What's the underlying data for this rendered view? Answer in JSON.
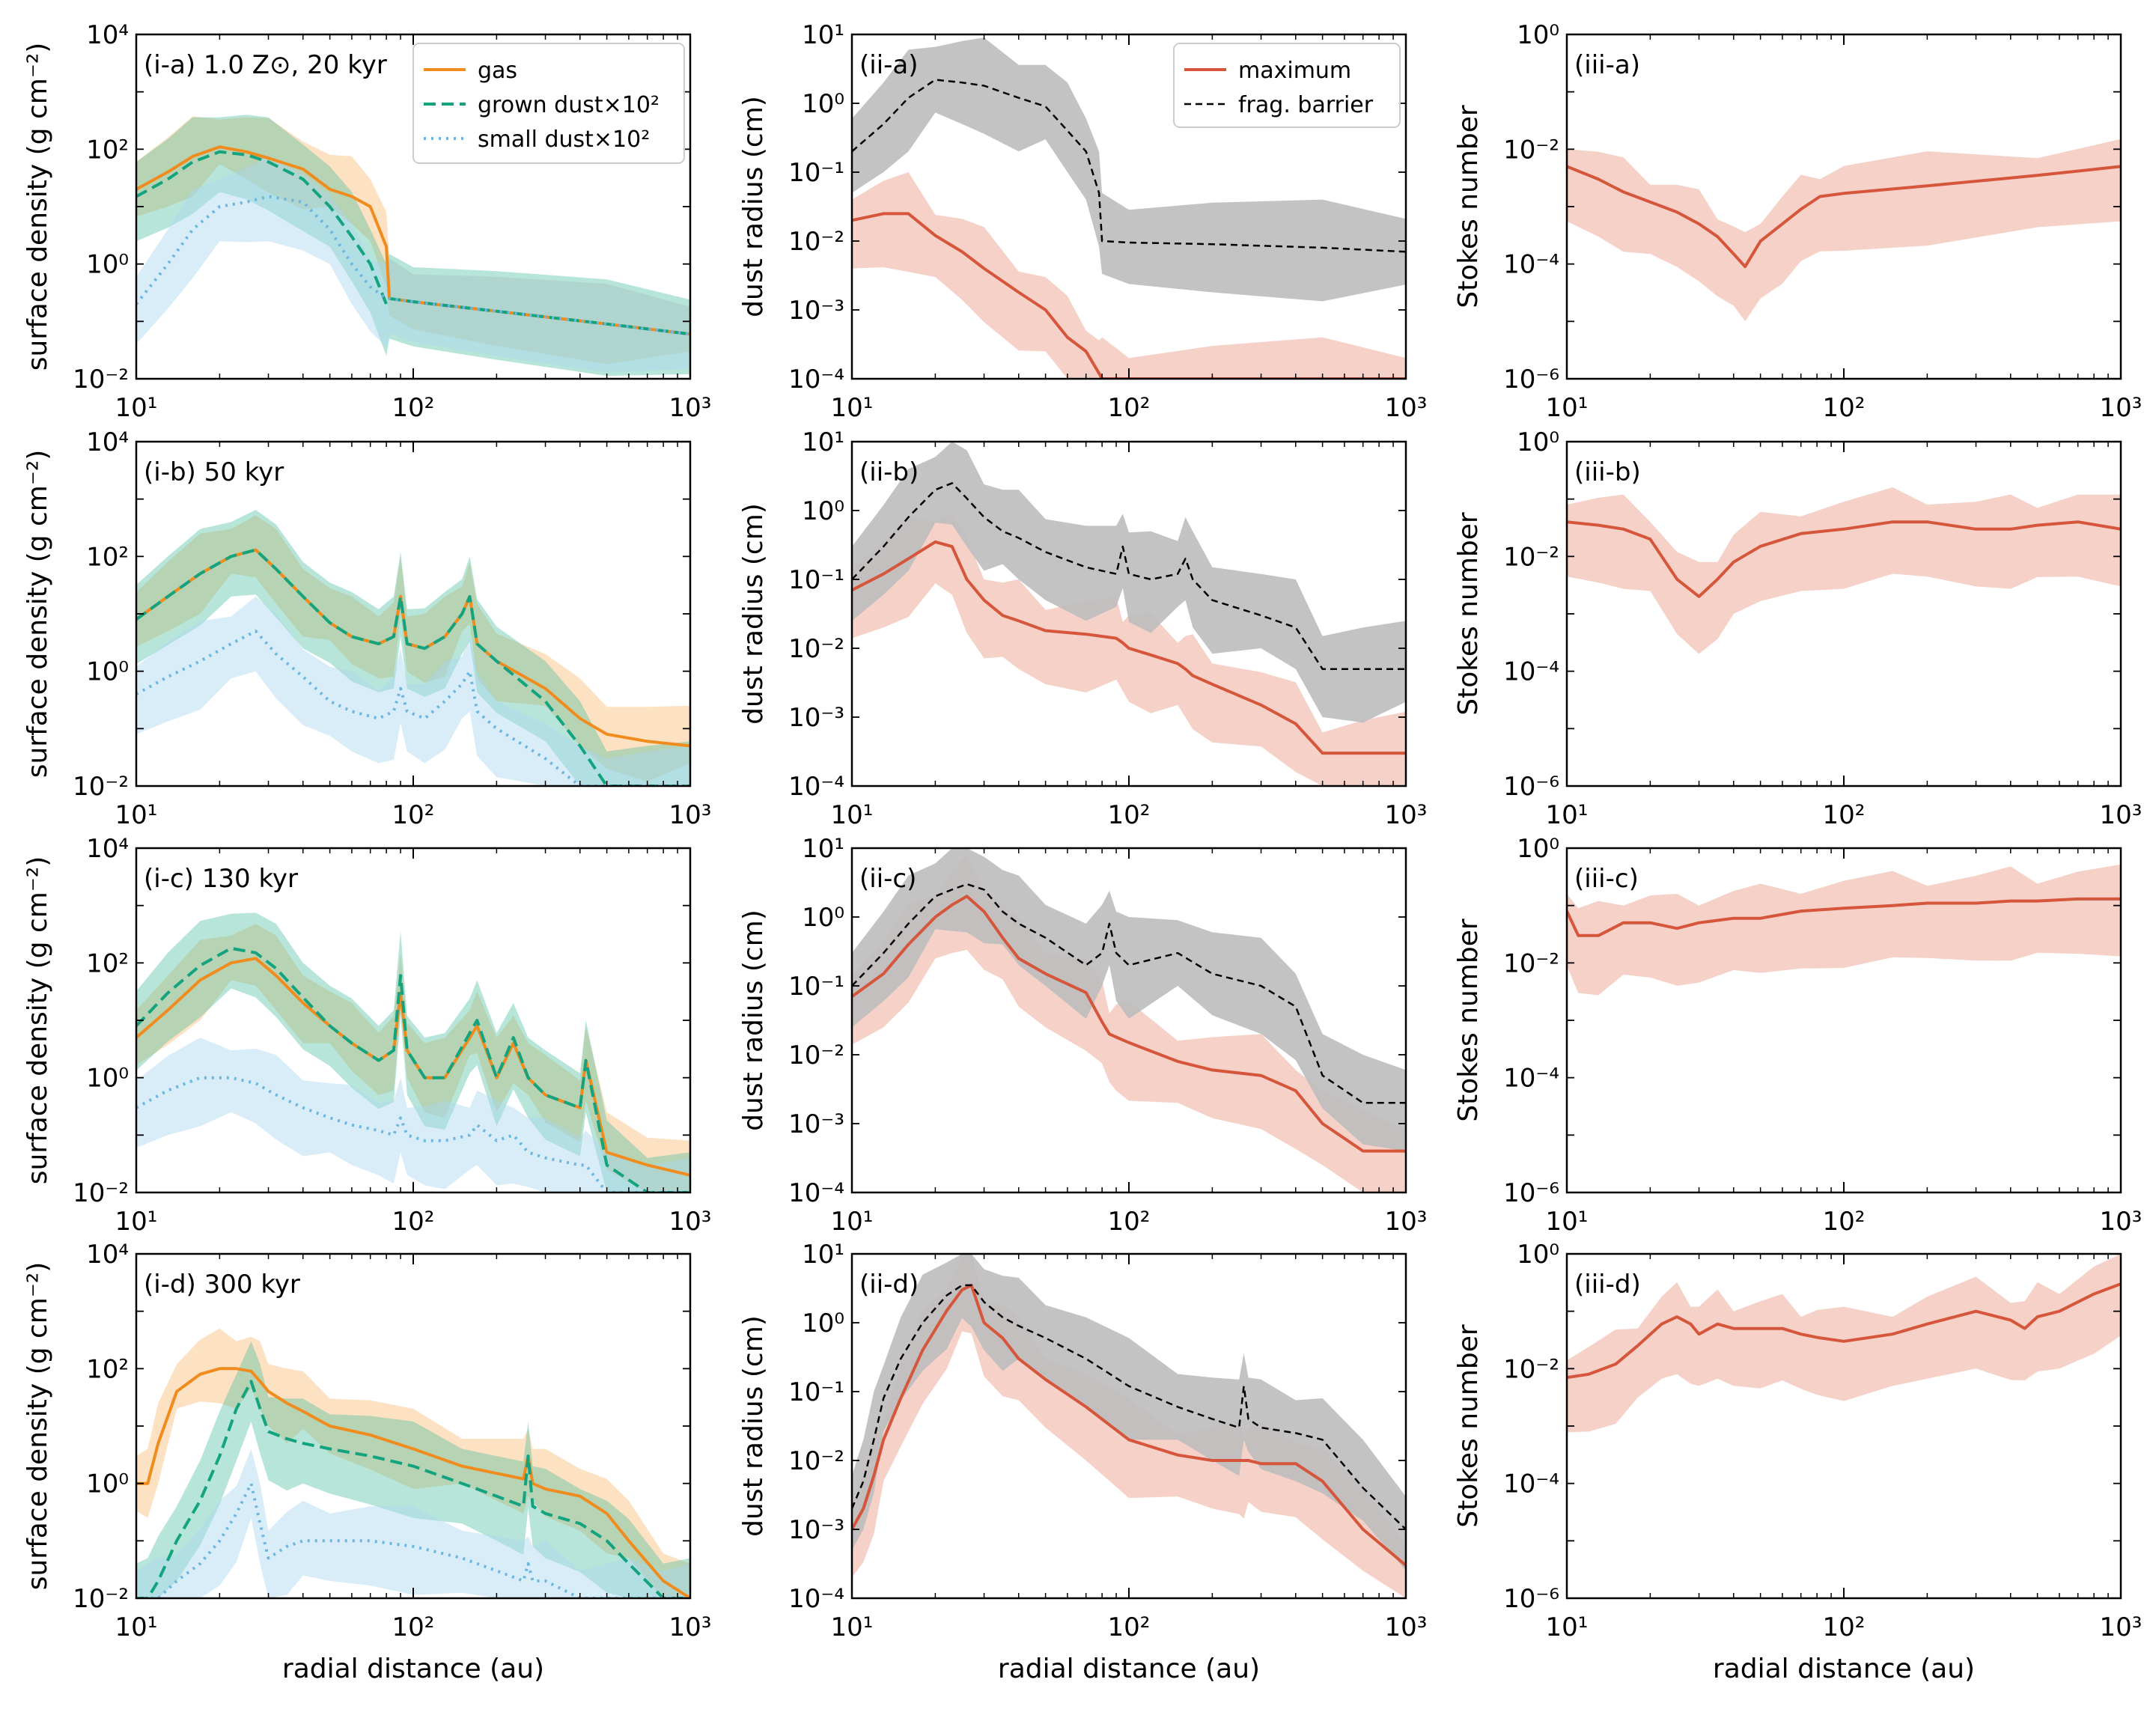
{
  "figure": {
    "xlabel": "radial distance (au)",
    "col_ylabels": [
      "surface density (g cm⁻²)",
      "dust radius (cm)",
      "Stokes number"
    ],
    "colors": {
      "gas": "#f08c1e",
      "grown": "#13a37f",
      "small": "#6bb7df",
      "dustmax": "#d6563c",
      "frag": "#000000",
      "band_gray": "#bdbdbd",
      "band_red": "#f2c2b6"
    }
  },
  "legends": {
    "surface": [
      "gas",
      "grown dust×10²",
      "small dust×10²"
    ],
    "radius": [
      "maximum",
      "frag. barrier"
    ]
  },
  "chart_data": [
    {
      "type": "line",
      "panel": "(i-a) 1.0 Z⊙, 20 kyr",
      "ylabel": "surface density (g cm⁻²)",
      "xlabel": "",
      "xlim": [
        10,
        1000
      ],
      "ylim": [
        0.01,
        10000
      ],
      "xscale": "log",
      "yscale": "log",
      "x": [
        10,
        13,
        16,
        20,
        25,
        30,
        40,
        50,
        60,
        70,
        80,
        82,
        100,
        200,
        500,
        1000
      ],
      "series": [
        {
          "name": "gas",
          "values": [
            20,
            40,
            75,
            110,
            90,
            70,
            45,
            20,
            15,
            10,
            2,
            0.25,
            0.22,
            0.15,
            0.09,
            0.06
          ]
        },
        {
          "name": "grown dust×10²",
          "values": [
            15,
            30,
            60,
            90,
            80,
            60,
            30,
            10,
            3,
            1,
            0.2,
            0.25,
            0.22,
            0.15,
            0.09,
            0.06
          ]
        },
        {
          "name": "small dust×10²",
          "values": [
            0.2,
            1,
            4,
            10,
            12,
            15,
            12,
            4,
            1,
            0.4,
            0.25,
            0.25,
            0.22,
            0.15,
            0.09,
            0.06
          ]
        }
      ]
    },
    {
      "type": "line",
      "panel": "(ii-a)",
      "ylabel": "dust radius (cm)",
      "xlabel": "",
      "xlim": [
        10,
        1000
      ],
      "ylim": [
        0.0001,
        10
      ],
      "xscale": "log",
      "yscale": "log",
      "x": [
        10,
        13,
        16,
        20,
        25,
        30,
        40,
        50,
        60,
        70,
        78,
        80,
        100,
        200,
        500,
        1000
      ],
      "series": [
        {
          "name": "maximum",
          "values": [
            0.02,
            0.025,
            0.025,
            0.012,
            0.007,
            0.004,
            0.0018,
            0.001,
            0.0004,
            0.00025,
            0.00012,
            0.0001,
            0.0001,
            0.0001,
            0.0001,
            0.0001
          ]
        },
        {
          "name": "frag. barrier",
          "values": [
            0.2,
            0.5,
            1.2,
            2.2,
            2,
            1.8,
            1.2,
            0.9,
            0.4,
            0.2,
            0.05,
            0.01,
            0.0095,
            0.009,
            0.008,
            0.007
          ]
        }
      ]
    },
    {
      "type": "line",
      "panel": "(iii-a)",
      "ylabel": "Stokes number",
      "xlabel": "",
      "xlim": [
        10,
        1000
      ],
      "ylim": [
        1e-06,
        1
      ],
      "xscale": "log",
      "yscale": "log",
      "x": [
        10,
        13,
        16,
        20,
        25,
        30,
        35,
        40,
        44,
        50,
        60,
        70,
        82,
        100,
        200,
        500,
        1000
      ],
      "series": [
        {
          "name": "Stokes number",
          "values": [
            0.005,
            0.003,
            0.0018,
            0.0012,
            0.0008,
            0.0005,
            0.0003,
            0.00015,
            9e-05,
            0.00025,
            0.0005,
            0.0009,
            0.0015,
            0.0017,
            0.0023,
            0.0035,
            0.005
          ]
        }
      ]
    },
    {
      "type": "line",
      "panel": "(i-b) 50 kyr",
      "ylabel": "surface density (g cm⁻²)",
      "xlabel": "",
      "xlim": [
        10,
        1000
      ],
      "ylim": [
        0.01,
        10000
      ],
      "xscale": "log",
      "yscale": "log",
      "x": [
        10,
        13,
        17,
        22,
        27,
        32,
        40,
        50,
        60,
        75,
        85,
        90,
        95,
        110,
        130,
        150,
        160,
        170,
        200,
        300,
        400,
        500,
        700,
        1000
      ],
      "series": [
        {
          "name": "gas",
          "values": [
            8,
            20,
            50,
            100,
            130,
            60,
            20,
            7,
            4,
            3,
            4,
            20,
            3,
            2.5,
            4,
            10,
            20,
            3,
            1.5,
            0.5,
            0.15,
            0.08,
            0.06,
            0.05
          ]
        },
        {
          "name": "grown dust×10²",
          "values": [
            8,
            20,
            50,
            100,
            130,
            60,
            20,
            7,
            4,
            3,
            4,
            20,
            3,
            2.5,
            4,
            10,
            20,
            3,
            1.5,
            0.3,
            0.05,
            0.01,
            0.01,
            0.01
          ]
        },
        {
          "name": "small dust×10²",
          "values": [
            0.4,
            0.8,
            1.5,
            3,
            5,
            2,
            0.8,
            0.3,
            0.2,
            0.15,
            0.2,
            0.5,
            0.2,
            0.15,
            0.3,
            0.6,
            1,
            0.2,
            0.1,
            0.03,
            0.01,
            0.01,
            0.01,
            0.01
          ]
        }
      ]
    },
    {
      "type": "line",
      "panel": "(ii-b)",
      "ylabel": "dust radius (cm)",
      "xlabel": "",
      "xlim": [
        10,
        1000
      ],
      "ylim": [
        0.0001,
        10
      ],
      "xscale": "log",
      "yscale": "log",
      "x": [
        10,
        13,
        16,
        20,
        23,
        26,
        30,
        35,
        40,
        50,
        70,
        90,
        95,
        100,
        120,
        150,
        160,
        170,
        200,
        300,
        400,
        500,
        700,
        1000
      ],
      "series": [
        {
          "name": "maximum",
          "values": [
            0.07,
            0.12,
            0.2,
            0.35,
            0.3,
            0.1,
            0.05,
            0.03,
            0.025,
            0.018,
            0.016,
            0.014,
            0.012,
            0.01,
            0.008,
            0.006,
            0.005,
            0.004,
            0.003,
            0.0015,
            0.0008,
            0.0003,
            0.0003,
            0.0003
          ]
        },
        {
          "name": "frag. barrier",
          "values": [
            0.1,
            0.3,
            0.8,
            2,
            2.5,
            1.5,
            0.8,
            0.5,
            0.4,
            0.25,
            0.15,
            0.12,
            0.3,
            0.12,
            0.1,
            0.12,
            0.2,
            0.1,
            0.05,
            0.03,
            0.02,
            0.005,
            0.005,
            0.005
          ]
        }
      ]
    },
    {
      "type": "line",
      "panel": "(iii-b)",
      "ylabel": "Stokes number",
      "xlabel": "",
      "xlim": [
        10,
        1000
      ],
      "ylim": [
        1e-06,
        1
      ],
      "xscale": "log",
      "yscale": "log",
      "x": [
        10,
        13,
        16,
        20,
        25,
        30,
        35,
        40,
        50,
        70,
        100,
        150,
        200,
        300,
        400,
        500,
        700,
        1000
      ],
      "series": [
        {
          "name": "Stokes number",
          "values": [
            0.04,
            0.035,
            0.03,
            0.02,
            0.004,
            0.002,
            0.004,
            0.008,
            0.015,
            0.025,
            0.03,
            0.04,
            0.04,
            0.03,
            0.03,
            0.035,
            0.04,
            0.03
          ]
        }
      ]
    },
    {
      "type": "line",
      "panel": "(i-c) 130 kyr",
      "ylabel": "surface density (g cm⁻²)",
      "xlabel": "",
      "xlim": [
        10,
        1000
      ],
      "ylim": [
        0.01,
        10000
      ],
      "xscale": "log",
      "yscale": "log",
      "x": [
        10,
        13,
        17,
        22,
        27,
        32,
        40,
        50,
        60,
        75,
        85,
        90,
        95,
        110,
        130,
        160,
        170,
        200,
        230,
        260,
        300,
        400,
        420,
        500,
        700,
        1000
      ],
      "series": [
        {
          "name": "gas",
          "values": [
            5,
            15,
            50,
            100,
            120,
            60,
            20,
            8,
            4,
            2,
            3,
            30,
            3,
            1,
            1,
            5,
            8,
            1,
            4,
            1,
            0.5,
            0.3,
            2,
            0.05,
            0.03,
            0.02
          ]
        },
        {
          "name": "grown dust×10²",
          "values": [
            8,
            30,
            90,
            180,
            150,
            80,
            25,
            8,
            4,
            2,
            3,
            60,
            3,
            1,
            1,
            6,
            10,
            1,
            5,
            1,
            0.5,
            0.3,
            2,
            0.03,
            0.01,
            0.01
          ]
        },
        {
          "name": "small dust×10²",
          "values": [
            0.3,
            0.6,
            1,
            1,
            0.8,
            0.5,
            0.3,
            0.2,
            0.15,
            0.12,
            0.1,
            0.2,
            0.1,
            0.08,
            0.08,
            0.1,
            0.15,
            0.08,
            0.1,
            0.05,
            0.04,
            0.03,
            0.03,
            0.01,
            0.01,
            0.01
          ]
        }
      ]
    },
    {
      "type": "line",
      "panel": "(ii-c)",
      "ylabel": "dust radius (cm)",
      "xlabel": "",
      "xlim": [
        10,
        1000
      ],
      "ylim": [
        0.0001,
        10
      ],
      "xscale": "log",
      "yscale": "log",
      "x": [
        10,
        13,
        16,
        20,
        23,
        26,
        30,
        35,
        40,
        50,
        70,
        80,
        85,
        90,
        100,
        150,
        200,
        300,
        400,
        500,
        700,
        1000
      ],
      "series": [
        {
          "name": "maximum",
          "values": [
            0.07,
            0.15,
            0.4,
            1,
            1.5,
            2,
            1.2,
            0.5,
            0.25,
            0.15,
            0.08,
            0.03,
            0.02,
            0.018,
            0.015,
            0.008,
            0.006,
            0.005,
            0.003,
            0.001,
            0.0004,
            0.0004
          ]
        },
        {
          "name": "frag. barrier",
          "values": [
            0.1,
            0.3,
            0.8,
            2,
            2.5,
            3,
            2.5,
            1.2,
            0.8,
            0.5,
            0.2,
            0.3,
            0.8,
            0.3,
            0.2,
            0.3,
            0.15,
            0.1,
            0.05,
            0.005,
            0.002,
            0.002
          ]
        }
      ]
    },
    {
      "type": "line",
      "panel": "(iii-c)",
      "ylabel": "Stokes number",
      "xlabel": "",
      "xlim": [
        10,
        1000
      ],
      "ylim": [
        1e-06,
        1
      ],
      "xscale": "log",
      "yscale": "log",
      "x": [
        10,
        11,
        13,
        16,
        20,
        25,
        30,
        40,
        50,
        70,
        100,
        150,
        200,
        300,
        400,
        500,
        700,
        1000
      ],
      "series": [
        {
          "name": "Stokes number",
          "values": [
            0.08,
            0.03,
            0.03,
            0.05,
            0.05,
            0.04,
            0.05,
            0.06,
            0.06,
            0.08,
            0.09,
            0.1,
            0.11,
            0.11,
            0.12,
            0.12,
            0.13,
            0.13
          ]
        }
      ]
    },
    {
      "type": "line",
      "panel": "(i-d) 300 kyr",
      "ylabel": "surface density (g cm⁻²)",
      "xlabel": "radial distance (au)",
      "xlim": [
        10,
        1000
      ],
      "ylim": [
        0.01,
        10000
      ],
      "xscale": "log",
      "yscale": "log",
      "x": [
        10,
        11,
        12,
        14,
        17,
        20,
        23,
        26,
        28,
        30,
        35,
        40,
        50,
        70,
        100,
        150,
        200,
        250,
        260,
        270,
        300,
        400,
        500,
        600,
        800,
        1000
      ],
      "series": [
        {
          "name": "gas",
          "values": [
            1,
            1,
            5,
            40,
            80,
            100,
            100,
            90,
            60,
            40,
            25,
            18,
            10,
            7,
            4,
            2,
            1.5,
            1.2,
            3,
            1,
            0.8,
            0.6,
            0.3,
            0.1,
            0.02,
            0.01
          ]
        },
        {
          "name": "grown dust×10²",
          "values": [
            0.01,
            0.01,
            0.02,
            0.1,
            0.5,
            3,
            20,
            60,
            20,
            8,
            6,
            5,
            4,
            3,
            2,
            1,
            0.6,
            0.4,
            3,
            0.4,
            0.3,
            0.2,
            0.1,
            0.04,
            0.01,
            0.01
          ]
        },
        {
          "name": "small dust×10²",
          "values": [
            0.01,
            0.01,
            0.01,
            0.02,
            0.04,
            0.1,
            0.3,
            1,
            0.2,
            0.05,
            0.08,
            0.1,
            0.1,
            0.1,
            0.08,
            0.05,
            0.03,
            0.02,
            0.04,
            0.02,
            0.02,
            0.01,
            0.01,
            0.01,
            0.01,
            0.01
          ]
        }
      ]
    },
    {
      "type": "line",
      "panel": "(ii-d)",
      "ylabel": "dust radius (cm)",
      "xlabel": "radial distance (au)",
      "xlim": [
        10,
        1000
      ],
      "ylim": [
        0.0001,
        10
      ],
      "xscale": "log",
      "yscale": "log",
      "x": [
        10,
        11,
        12,
        13,
        15,
        18,
        22,
        25,
        27,
        30,
        35,
        40,
        50,
        70,
        100,
        150,
        200,
        250,
        260,
        270,
        300,
        400,
        500,
        700,
        1000
      ],
      "series": [
        {
          "name": "maximum",
          "values": [
            0.001,
            0.002,
            0.006,
            0.02,
            0.08,
            0.4,
            1.5,
            3,
            3.5,
            1,
            0.6,
            0.3,
            0.15,
            0.06,
            0.02,
            0.012,
            0.01,
            0.01,
            0.01,
            0.01,
            0.009,
            0.009,
            0.005,
            0.001,
            0.0003
          ]
        },
        {
          "name": "frag. barrier",
          "values": [
            0.002,
            0.005,
            0.02,
            0.08,
            0.3,
            1,
            2.5,
            3.5,
            3.5,
            2,
            1.2,
            0.9,
            0.6,
            0.3,
            0.12,
            0.06,
            0.04,
            0.03,
            0.12,
            0.04,
            0.03,
            0.025,
            0.02,
            0.004,
            0.001
          ]
        }
      ]
    },
    {
      "type": "line",
      "panel": "(iii-d)",
      "ylabel": "Stokes number",
      "xlabel": "radial distance (au)",
      "xlim": [
        10,
        1000
      ],
      "ylim": [
        1e-06,
        1
      ],
      "xscale": "log",
      "yscale": "log",
      "x": [
        10,
        12,
        15,
        18,
        22,
        25,
        28,
        30,
        35,
        40,
        50,
        60,
        70,
        80,
        100,
        150,
        200,
        300,
        400,
        450,
        500,
        600,
        800,
        1000
      ],
      "series": [
        {
          "name": "Stokes number",
          "values": [
            0.007,
            0.008,
            0.012,
            0.025,
            0.06,
            0.08,
            0.06,
            0.04,
            0.06,
            0.05,
            0.05,
            0.05,
            0.04,
            0.035,
            0.03,
            0.04,
            0.06,
            0.1,
            0.07,
            0.05,
            0.08,
            0.1,
            0.2,
            0.3
          ]
        }
      ]
    }
  ]
}
